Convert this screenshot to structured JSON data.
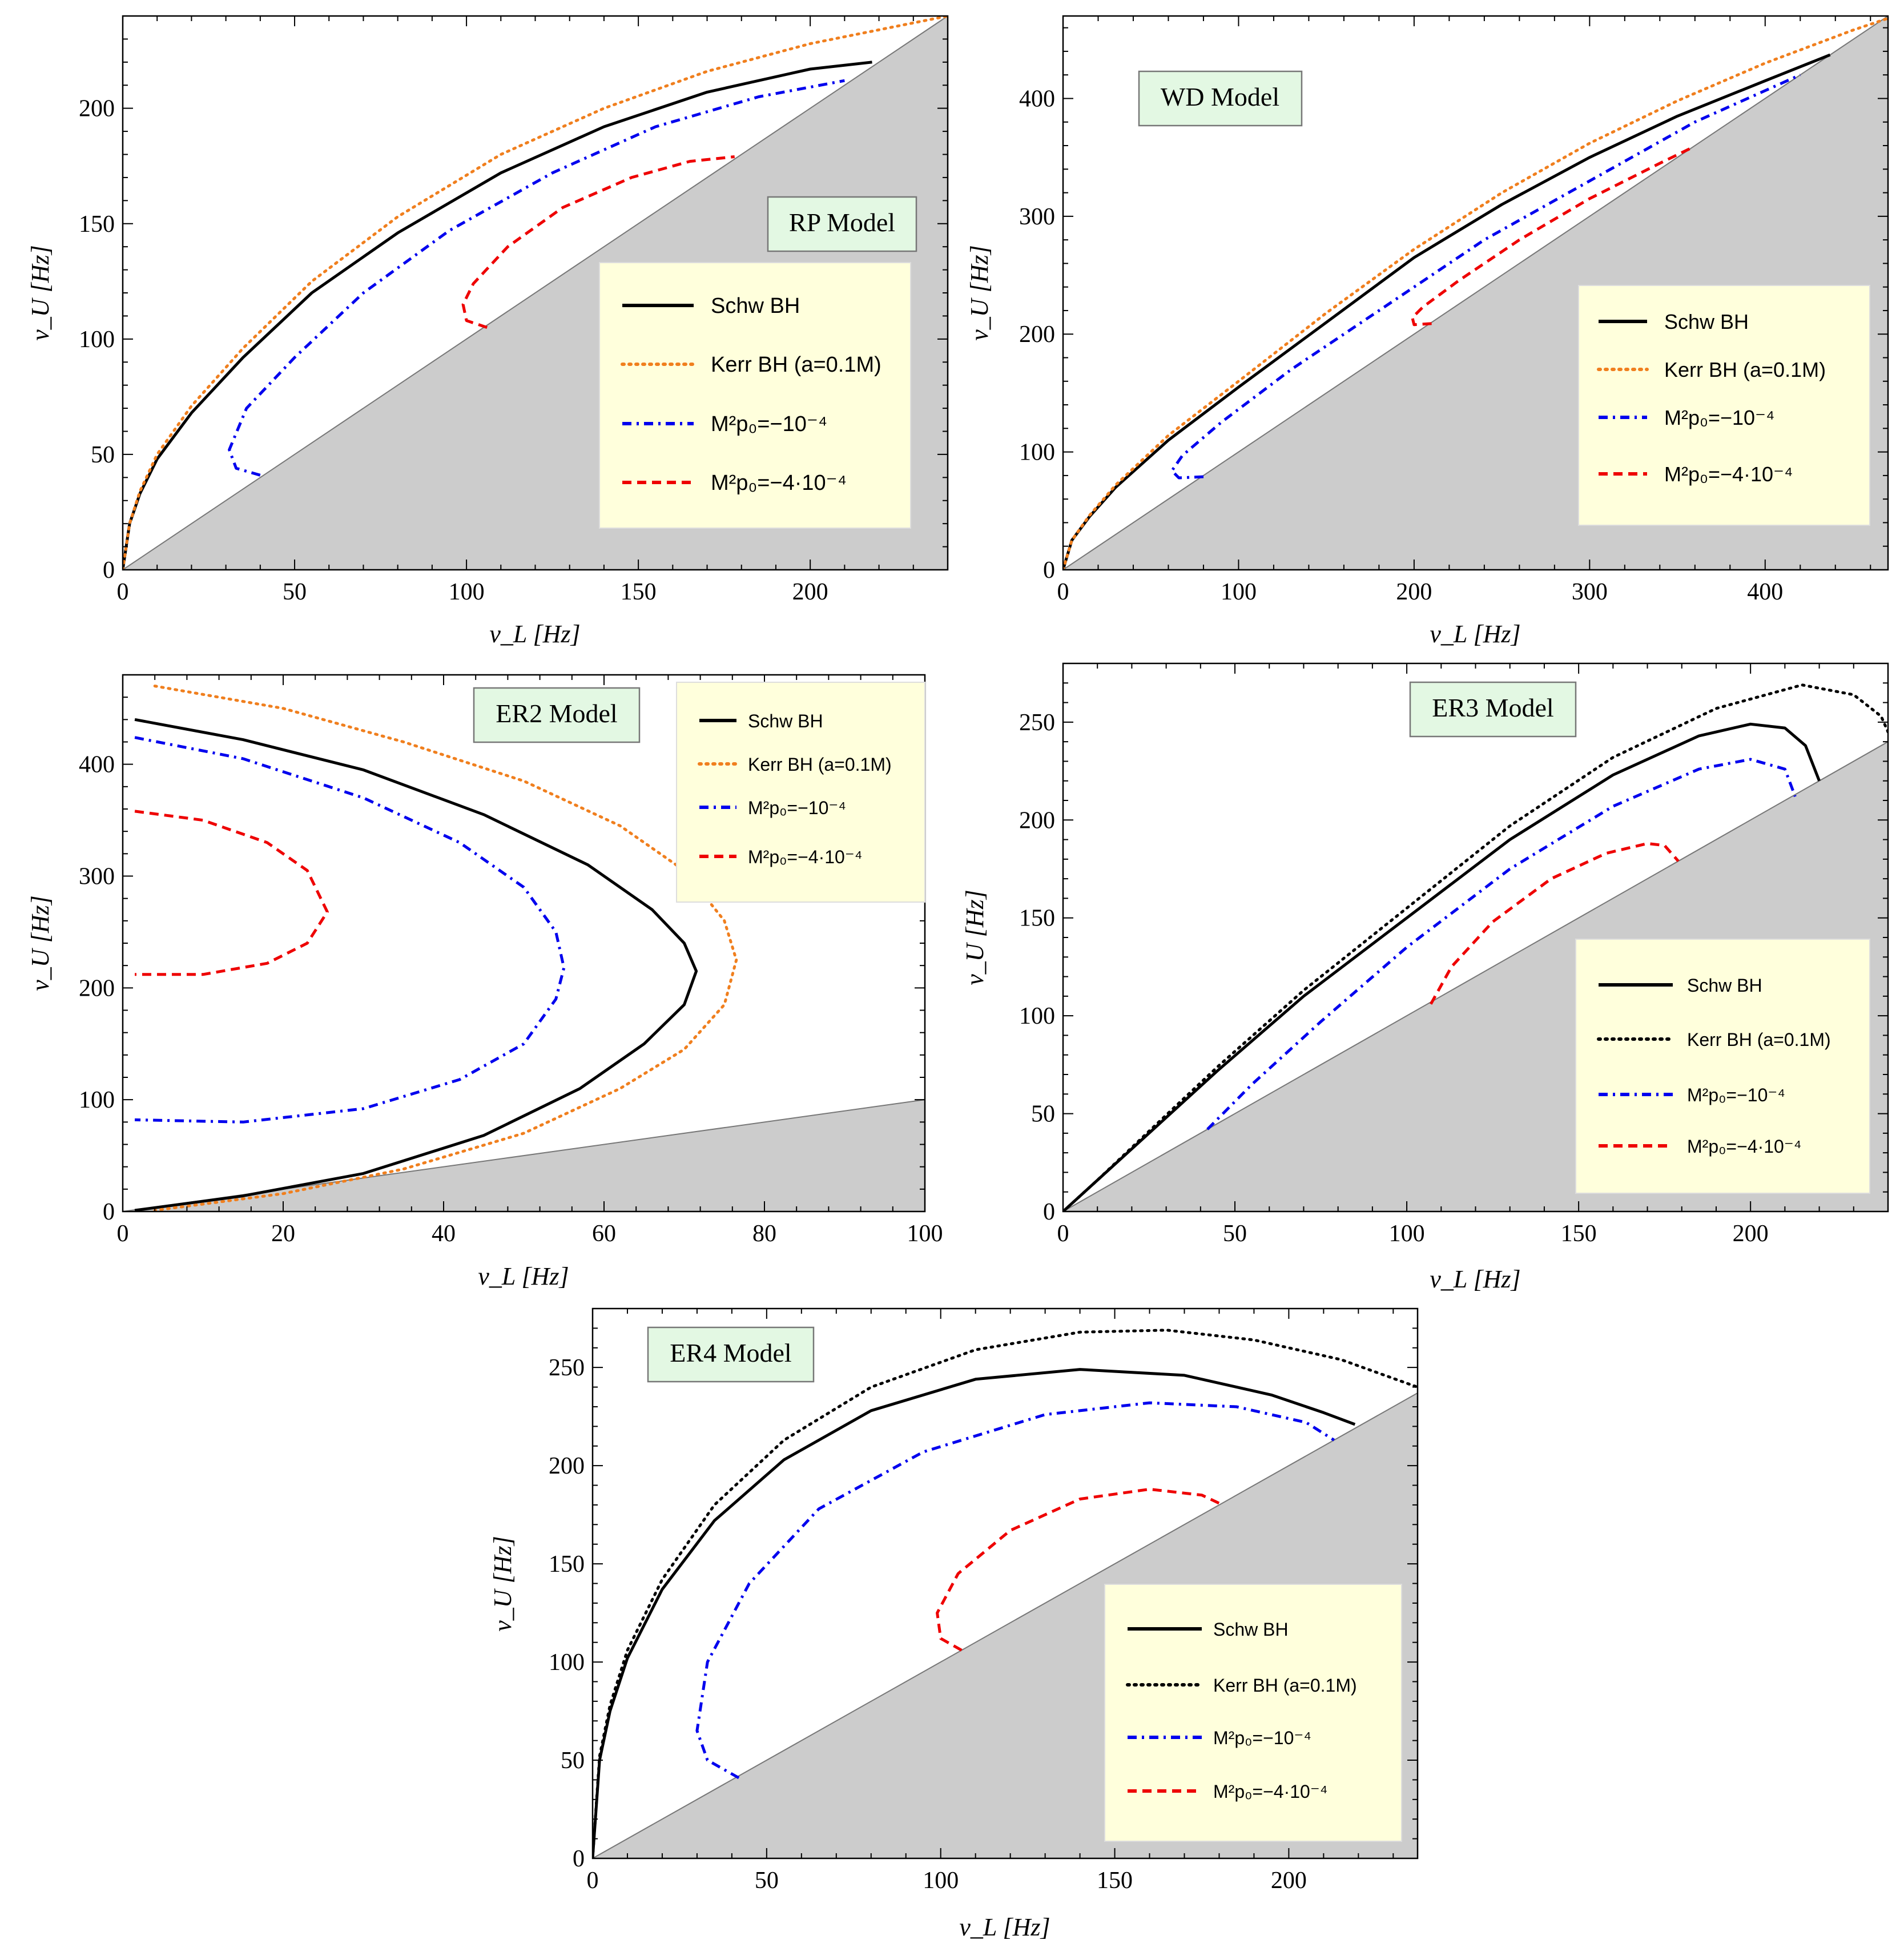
{
  "chart_data": [
    {
      "id": "rp",
      "type": "line",
      "title": "RP Model",
      "xlabel": "ν_L [Hz]",
      "ylabel": "ν_U [Hz]",
      "xlim": [
        0,
        240
      ],
      "ylim": [
        0,
        240
      ],
      "xticks": [
        0,
        50,
        100,
        150,
        200
      ],
      "yticks": [
        0,
        50,
        100,
        150,
        200
      ],
      "shade": "below-diagonal",
      "legend": "right",
      "series": [
        {
          "name": "Schw BH",
          "style": "solid",
          "color": "#000000",
          "x": [
            0,
            2,
            5,
            10,
            20,
            35,
            55,
            80,
            110,
            140,
            170,
            200,
            218
          ],
          "y": [
            0,
            20,
            33,
            48,
            68,
            92,
            120,
            146,
            172,
            192,
            207,
            217,
            220
          ]
        },
        {
          "name": "Kerr BH (a=0.1M)",
          "style": "dotted",
          "color": "#f07f1e",
          "x": [
            0,
            2,
            5,
            10,
            20,
            35,
            55,
            80,
            110,
            140,
            170,
            200,
            230,
            240
          ],
          "y": [
            0,
            20,
            34,
            50,
            71,
            96,
            125,
            153,
            180,
            200,
            216,
            228,
            237,
            240
          ]
        },
        {
          "name": "M²p₀=−10⁻⁴",
          "style": "dashdot",
          "color": "#0000ee",
          "x": [
            40,
            33,
            31,
            36,
            50,
            70,
            95,
            125,
            155,
            185,
            210
          ],
          "y": [
            41,
            44,
            52,
            70,
            92,
            120,
            147,
            172,
            192,
            205,
            212
          ]
        },
        {
          "name": "M²p₀=−4·10⁻⁴",
          "style": "dashed",
          "color": "#ee0000",
          "x": [
            106,
            100,
            99,
            102,
            112,
            128,
            148,
            165,
            178
          ],
          "y": [
            105,
            108,
            115,
            124,
            140,
            157,
            170,
            177,
            179
          ]
        }
      ]
    },
    {
      "id": "wd",
      "type": "line",
      "title": "WD Model",
      "xlabel": "ν_L [Hz]",
      "ylabel": "ν_U [Hz]",
      "xlim": [
        0,
        470
      ],
      "ylim": [
        0,
        470
      ],
      "xticks": [
        0,
        100,
        200,
        300,
        400
      ],
      "yticks": [
        0,
        100,
        200,
        300,
        400
      ],
      "shade": "below-diagonal",
      "legend": "right",
      "series": [
        {
          "name": "Schw BH",
          "style": "solid",
          "color": "#000000",
          "x": [
            0,
            5,
            15,
            30,
            60,
            100,
            150,
            200,
            250,
            300,
            350,
            400,
            437
          ],
          "y": [
            0,
            25,
            45,
            70,
            110,
            155,
            210,
            265,
            310,
            350,
            385,
            415,
            437
          ]
        },
        {
          "name": "Kerr BH (a=0.1M)",
          "style": "dotted",
          "color": "#f07f1e",
          "x": [
            0,
            5,
            15,
            30,
            60,
            100,
            150,
            200,
            250,
            300,
            350,
            400,
            450,
            470
          ],
          "y": [
            0,
            25,
            46,
            72,
            114,
            160,
            218,
            272,
            320,
            362,
            398,
            430,
            458,
            468
          ]
        },
        {
          "name": "M²p₀=−10⁻⁴",
          "style": "dashdot",
          "color": "#0000ee",
          "x": [
            80,
            66,
            62,
            68,
            90,
            130,
            180,
            240,
            300,
            360,
            420
          ],
          "y": [
            79,
            78,
            84,
            97,
            125,
            170,
            220,
            280,
            330,
            380,
            420
          ]
        },
        {
          "name": "M²p₀=−4·10⁻⁴",
          "style": "dashed",
          "color": "#ee0000",
          "x": [
            210,
            200,
            199,
            205,
            225,
            260,
            300,
            340,
            358
          ],
          "y": [
            209,
            208,
            214,
            223,
            245,
            280,
            315,
            345,
            358
          ]
        }
      ]
    },
    {
      "id": "er2",
      "type": "line",
      "title": "ER2 Model",
      "xlabel": "ν_L [Hz]",
      "ylabel": "ν_U [Hz]",
      "xlim": [
        0,
        100
      ],
      "ylim": [
        0,
        480
      ],
      "xticks": [
        0,
        20,
        40,
        60,
        80,
        100
      ],
      "yticks": [
        0,
        100,
        200,
        300,
        400
      ],
      "shade": "below-line-slope-1",
      "legend": "top-right",
      "series": [
        {
          "name": "Schw BH",
          "style": "solid",
          "color": "#000000",
          "x": [
            1.5,
            15,
            30,
            45,
            58,
            66,
            70,
            71.5,
            70,
            65,
            57,
            45,
            30,
            15,
            1.5
          ],
          "y": [
            440,
            422,
            395,
            355,
            310,
            270,
            240,
            215,
            185,
            150,
            110,
            68,
            34,
            14,
            1
          ]
        },
        {
          "name": "Kerr BH (a=0.1M)",
          "style": "dotted",
          "color": "#f07f1e",
          "x": [
            4,
            20,
            35,
            50,
            62,
            70,
            75,
            76.5,
            75,
            70,
            62,
            50,
            35,
            20,
            4
          ],
          "y": [
            470,
            450,
            420,
            385,
            345,
            305,
            260,
            225,
            185,
            145,
            110,
            70,
            38,
            16,
            1
          ]
        },
        {
          "name": "M²p₀=−10⁻⁴",
          "style": "dashdot",
          "color": "#0000ee",
          "x": [
            1.5,
            15,
            30,
            42,
            50,
            54,
            55,
            54,
            50,
            42,
            30,
            15,
            1.5
          ],
          "y": [
            424,
            405,
            370,
            330,
            290,
            250,
            218,
            190,
            150,
            118,
            92,
            80,
            82
          ]
        },
        {
          "name": "M²p₀=−4·10⁻⁴",
          "style": "dashed",
          "color": "#ee0000",
          "x": [
            1.5,
            10,
            18,
            23,
            25.5,
            23,
            18,
            10,
            1.5
          ],
          "y": [
            358,
            350,
            330,
            305,
            268,
            240,
            222,
            212,
            212
          ]
        }
      ]
    },
    {
      "id": "er3",
      "type": "line",
      "title": "ER3 Model",
      "xlabel": "ν_L [Hz]",
      "ylabel": "ν_U [Hz]",
      "xlim": [
        0,
        240
      ],
      "ylim": [
        0,
        280
      ],
      "xticks": [
        0,
        50,
        100,
        150,
        200
      ],
      "yticks": [
        0,
        50,
        100,
        150,
        200,
        250
      ],
      "shade": "below-diagonal",
      "legend": "right",
      "series": [
        {
          "name": "Schw BH",
          "style": "solid",
          "color": "#000000",
          "x": [
            0,
            10,
            25,
            45,
            70,
            100,
            130,
            160,
            185,
            200,
            210,
            216,
            220
          ],
          "y": [
            0,
            16,
            40,
            72,
            110,
            150,
            190,
            223,
            243,
            249,
            247,
            238,
            220
          ]
        },
        {
          "name": "Kerr BH (a=0.1M)",
          "style": "dotted",
          "color": "#000000",
          "x": [
            0,
            10,
            25,
            45,
            70,
            100,
            130,
            160,
            190,
            215,
            230,
            238,
            240
          ],
          "y": [
            0,
            16,
            41,
            74,
            113,
            155,
            197,
            232,
            257,
            269,
            264,
            253,
            245
          ]
        },
        {
          "name": "M²p₀=−10⁻⁴",
          "style": "dashdot",
          "color": "#0000ee",
          "x": [
            42,
            55,
            75,
            100,
            130,
            160,
            185,
            200,
            210,
            213
          ],
          "y": [
            42,
            65,
            97,
            135,
            175,
            207,
            226,
            231,
            226,
            212
          ]
        },
        {
          "name": "M²p₀=−4·10⁻⁴",
          "style": "dashed",
          "color": "#ee0000",
          "x": [
            107,
            113,
            125,
            142,
            158,
            170,
            175,
            179
          ],
          "y": [
            106,
            125,
            148,
            170,
            183,
            188,
            187,
            179
          ]
        }
      ]
    },
    {
      "id": "er4",
      "type": "line",
      "title": "ER4 Model",
      "xlabel": "ν_L [Hz]",
      "ylabel": "ν_U [Hz]",
      "xlim": [
        0,
        237
      ],
      "ylim": [
        0,
        280
      ],
      "xticks": [
        0,
        50,
        100,
        150,
        200
      ],
      "yticks": [
        0,
        50,
        100,
        150,
        200,
        250
      ],
      "shade": "below-diagonal",
      "legend": "right",
      "series": [
        {
          "name": "Schw BH",
          "style": "solid",
          "color": "#000000",
          "x": [
            0,
            2,
            5,
            10,
            20,
            35,
            55,
            80,
            110,
            140,
            170,
            195,
            210,
            219
          ],
          "y": [
            0,
            50,
            75,
            102,
            137,
            172,
            203,
            228,
            244,
            249,
            246,
            236,
            227,
            221
          ]
        },
        {
          "name": "Kerr BH (a=0.1M)",
          "style": "dotted",
          "color": "#000000",
          "x": [
            0,
            2,
            5,
            10,
            20,
            35,
            55,
            80,
            110,
            140,
            165,
            190,
            215,
            237
          ],
          "y": [
            0,
            52,
            78,
            106,
            142,
            180,
            213,
            240,
            259,
            268,
            269,
            264,
            254,
            240
          ]
        },
        {
          "name": "M²p₀=−10⁻⁴",
          "style": "dashdot",
          "color": "#0000ee",
          "x": [
            42,
            33,
            30,
            33,
            45,
            65,
            95,
            130,
            160,
            185,
            205,
            213
          ],
          "y": [
            41,
            50,
            65,
            100,
            140,
            178,
            207,
            226,
            232,
            230,
            222,
            213
          ]
        },
        {
          "name": "M²p₀=−4·10⁻⁴",
          "style": "dashed",
          "color": "#ee0000",
          "x": [
            106,
            100,
            99,
            105,
            120,
            140,
            160,
            175,
            181
          ],
          "y": [
            106,
            112,
            125,
            145,
            167,
            183,
            188,
            185,
            180
          ]
        }
      ]
    }
  ]
}
